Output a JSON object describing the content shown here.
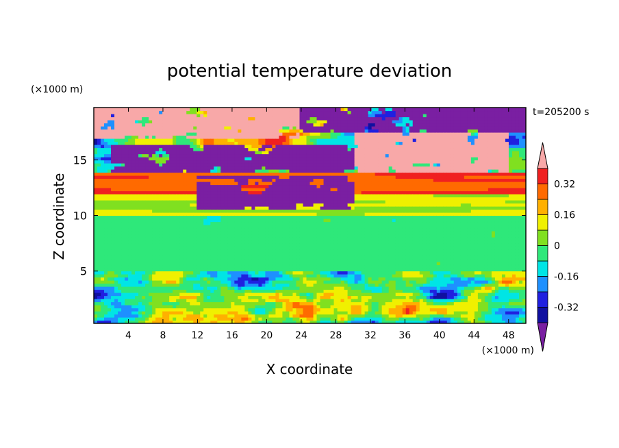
{
  "chart_data": {
    "type": "heatmap",
    "title": "potential temperature deviation",
    "xlabel": "X coordinate",
    "ylabel": "Z coordinate",
    "x_unit": "(×1000 m)",
    "y_unit": "(×1000 m)",
    "time_label": "t=205200 s",
    "xlim": [
      0,
      50
    ],
    "ylim": [
      0.3,
      19.7
    ],
    "x_ticks": [
      4,
      8,
      12,
      16,
      20,
      24,
      28,
      32,
      36,
      40,
      44,
      48
    ],
    "y_ticks": [
      5,
      10,
      15
    ],
    "colorbar": {
      "levels": [
        -0.4,
        -0.32,
        -0.24,
        -0.16,
        -0.08,
        0,
        0.08,
        0.16,
        0.24,
        0.32,
        0.4
      ],
      "tick_labels": [
        "-0.32",
        "-0.16",
        "0",
        "0.16",
        "0.32"
      ],
      "tick_values": [
        -0.32,
        -0.16,
        0,
        0.16,
        0.32
      ],
      "colors": [
        "#7a1fa2",
        "#1010a0",
        "#2020e0",
        "#1e90ff",
        "#00e5e5",
        "#2ee87a",
        "#80e020",
        "#f0f000",
        "#ffb000",
        "#ff6a00",
        "#f02020",
        "#f8a8a8"
      ],
      "extend": "both"
    },
    "layers": [
      {
        "z": [
          0.3,
          5.0
        ],
        "x": [
          0,
          50
        ],
        "pattern": "turbulent",
        "mean": -0.05,
        "amplitude": 0.45
      },
      {
        "z": [
          5.0,
          10.0
        ],
        "x": [
          0,
          50
        ],
        "pattern": "smooth",
        "mean": -0.04,
        "amplitude": 0.06
      },
      {
        "z": [
          10.0,
          12.0
        ],
        "x": [
          0,
          50
        ],
        "pattern": "banded",
        "mean": 0.08,
        "amplitude": 0.08
      },
      {
        "z": [
          12.0,
          14.0
        ],
        "x": [
          0,
          50
        ],
        "pattern": "banded",
        "mean": 0.3,
        "amplitude": 0.08
      },
      {
        "z": [
          14.0,
          19.7
        ],
        "x": [
          0,
          50
        ],
        "pattern": "blobs",
        "mean": 0.0,
        "amplitude": 0.5
      }
    ],
    "features": [
      {
        "name": "purple-tongue",
        "x": [
          12,
          30
        ],
        "z": [
          10.6,
          13.5
        ],
        "value": -0.42
      },
      {
        "name": "upper-purple-band",
        "x": [
          2,
          30
        ],
        "z": [
          14.0,
          16.5
        ],
        "value": -0.42
      },
      {
        "name": "upper-right-pink",
        "x": [
          30,
          48
        ],
        "z": [
          14.0,
          17.5
        ],
        "value": 0.42
      },
      {
        "name": "top-right-purple",
        "x": [
          24,
          50
        ],
        "z": [
          17.5,
          19.7
        ],
        "value": -0.42
      },
      {
        "name": "top-left-pink",
        "x": [
          0,
          24
        ],
        "z": [
          16.8,
          19.7
        ],
        "value": 0.42
      }
    ]
  }
}
